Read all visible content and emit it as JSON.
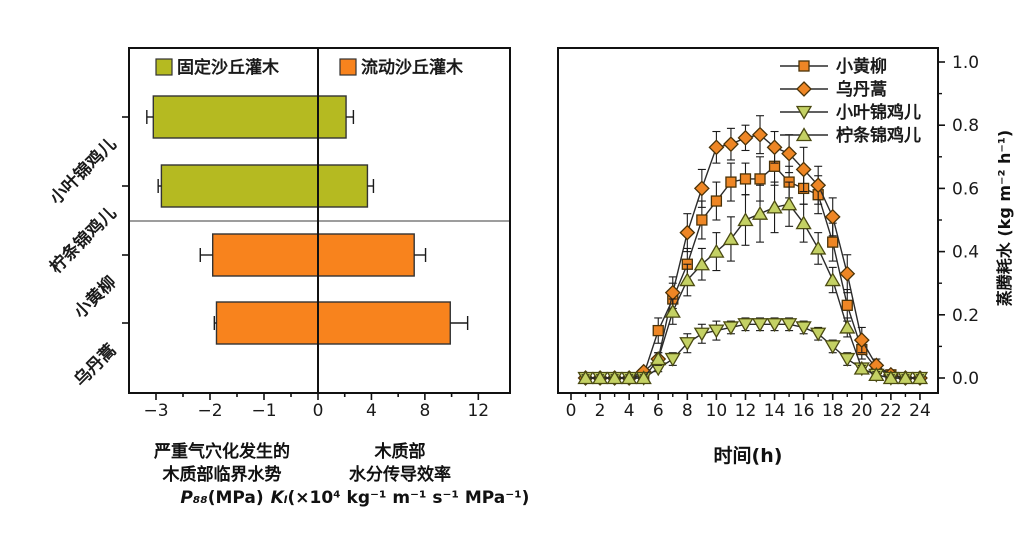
{
  "chart_data": [
    {
      "type": "bar",
      "orientation": "horizontal-diverging",
      "legend": [
        {
          "key": "fixed-dune-shrub",
          "label": "固定沙丘灌木",
          "color": "#b5ba21"
        },
        {
          "key": "mobile-dune-shrub",
          "label": "流动沙丘灌木",
          "color": "#f8831d"
        }
      ],
      "categories": [
        "小叶锦鸡儿",
        "柠条锦鸡儿",
        "小黄柳",
        "乌丹蒿"
      ],
      "keys": [
        "xiaoyejinjier",
        "ningtiaojinjier",
        "xiaohuangliu",
        "wudanhao"
      ],
      "groups": [
        "fixed",
        "fixed",
        "mobile",
        "mobile"
      ],
      "p88_values": [
        -3.05,
        -2.9,
        -1.95,
        -1.88
      ],
      "p88_errors": [
        0.12,
        0.06,
        0.23,
        0.04
      ],
      "kl_values": [
        2.1,
        3.7,
        7.2,
        9.9
      ],
      "kl_errors": [
        0.55,
        0.45,
        0.85,
        1.3
      ],
      "x_tick_labels_left": [
        "−3",
        "−2",
        "−1"
      ],
      "x_ticks_left": [
        -3,
        -2,
        -1
      ],
      "x_minor_left": [
        -2.5,
        -1.5,
        -0.5
      ],
      "zero_label": "0",
      "x_tick_labels_right": [
        "4",
        "8",
        "12"
      ],
      "x_ticks_right": [
        4,
        8,
        12
      ],
      "x_minor_right": [
        2,
        6,
        10
      ],
      "axis_captions": {
        "left": {
          "lines": [
            "严重气穴化发生的",
            "木质部临界水势"
          ],
          "symbol": "P₈₈",
          "units": "(MPa)"
        },
        "right": {
          "lines": [
            "木质部",
            "水分传导效率"
          ],
          "symbol": "Kₗ",
          "units": "(×10⁴ kg⁻¹ m⁻¹ s⁻¹ MPa⁻¹)"
        }
      },
      "bar_edge_color": "#333333",
      "error_color": "#1a1a1a"
    },
    {
      "type": "line",
      "xlabel": "时间(h)",
      "ylabel": "蒸腾耗水 (kg m⁻² h⁻¹)",
      "xlim": [
        0,
        24
      ],
      "ylim": [
        0.0,
        1.05
      ],
      "x_tick_labels": [
        "0",
        "2",
        "4",
        "6",
        "8",
        "10",
        "12",
        "14",
        "16",
        "18",
        "20",
        "22",
        "24"
      ],
      "x_major_ticks": [
        0,
        2,
        4,
        6,
        8,
        10,
        12,
        14,
        16,
        18,
        20,
        22,
        24
      ],
      "x_minor_ticks": [
        1,
        3,
        5,
        7,
        9,
        11,
        13,
        15,
        17,
        19,
        21,
        23
      ],
      "y_tick_labels": [
        "0.0",
        "0.2",
        "0.4",
        "0.6",
        "0.8",
        "1.0"
      ],
      "y_major_ticks": [
        0.0,
        0.2,
        0.4,
        0.6,
        0.8,
        1.0
      ],
      "y_minor_ticks": [
        0.1,
        0.3,
        0.5,
        0.7,
        0.9
      ],
      "legend_position": "top-right-inside",
      "x": [
        1,
        2,
        3,
        4,
        5,
        6,
        7,
        8,
        9,
        10,
        11,
        12,
        13,
        14,
        15,
        16,
        17,
        18,
        19,
        20,
        21,
        22,
        23,
        24
      ],
      "series": [
        {
          "key": "xiaohuangliu",
          "name": "小黄柳",
          "marker": "square",
          "fill": "#ee8625",
          "edge": "#4a3208",
          "line_color": "#2b2b2b",
          "values": [
            0.0,
            0.0,
            0.0,
            0.0,
            0.01,
            0.15,
            0.25,
            0.36,
            0.5,
            0.56,
            0.62,
            0.63,
            0.63,
            0.67,
            0.62,
            0.6,
            0.58,
            0.43,
            0.23,
            0.09,
            0.03,
            0.01,
            0.0,
            0.0
          ],
          "errors": [
            0.01,
            0.01,
            0.01,
            0.01,
            0.01,
            0.04,
            0.05,
            0.05,
            0.06,
            0.06,
            0.06,
            0.05,
            0.07,
            0.06,
            0.05,
            0.05,
            0.06,
            0.06,
            0.05,
            0.03,
            0.02,
            0.01,
            0.01,
            0.01
          ]
        },
        {
          "key": "wudanhao",
          "name": "乌丹蒿",
          "marker": "diamond",
          "fill": "#ee8625",
          "edge": "#4a3208",
          "line_color": "#2b2b2b",
          "values": [
            0.0,
            0.0,
            0.0,
            0.0,
            0.02,
            0.06,
            0.27,
            0.46,
            0.6,
            0.73,
            0.74,
            0.76,
            0.77,
            0.73,
            0.71,
            0.66,
            0.61,
            0.51,
            0.33,
            0.12,
            0.04,
            0.01,
            0.0,
            0.0
          ],
          "errors": [
            0.01,
            0.01,
            0.01,
            0.01,
            0.01,
            0.02,
            0.05,
            0.06,
            0.06,
            0.05,
            0.05,
            0.04,
            0.06,
            0.05,
            0.06,
            0.07,
            0.06,
            0.06,
            0.06,
            0.04,
            0.02,
            0.01,
            0.01,
            0.01
          ]
        },
        {
          "key": "xiaoyejinjier",
          "name": "小叶锦鸡儿",
          "marker": "triangle-down",
          "fill": "#c4d164",
          "edge": "#4b4b12",
          "line_color": "#2b2b2b",
          "values": [
            0.0,
            0.0,
            0.0,
            0.0,
            0.0,
            0.03,
            0.06,
            0.11,
            0.14,
            0.15,
            0.16,
            0.17,
            0.17,
            0.17,
            0.17,
            0.16,
            0.14,
            0.1,
            0.06,
            0.03,
            0.01,
            0.0,
            0.0,
            0.0
          ],
          "errors": [
            0.01,
            0.01,
            0.01,
            0.01,
            0.01,
            0.01,
            0.02,
            0.03,
            0.03,
            0.03,
            0.02,
            0.02,
            0.02,
            0.02,
            0.02,
            0.02,
            0.02,
            0.02,
            0.02,
            0.01,
            0.01,
            0.01,
            0.01,
            0.01
          ]
        },
        {
          "key": "ningtiaojinjier",
          "name": "柠条锦鸡儿",
          "marker": "triangle-up",
          "fill": "#c4d164",
          "edge": "#4b4b12",
          "line_color": "#2b2b2b",
          "values": [
            0.0,
            0.0,
            0.0,
            0.0,
            0.0,
            0.06,
            0.21,
            0.31,
            0.36,
            0.4,
            0.44,
            0.5,
            0.52,
            0.54,
            0.55,
            0.49,
            0.41,
            0.31,
            0.16,
            0.03,
            0.01,
            0.0,
            0.0,
            0.0
          ],
          "errors": [
            0.01,
            0.01,
            0.01,
            0.01,
            0.01,
            0.02,
            0.04,
            0.05,
            0.05,
            0.06,
            0.07,
            0.08,
            0.09,
            0.08,
            0.07,
            0.06,
            0.05,
            0.04,
            0.03,
            0.01,
            0.01,
            0.01,
            0.01,
            0.01
          ]
        }
      ]
    }
  ]
}
